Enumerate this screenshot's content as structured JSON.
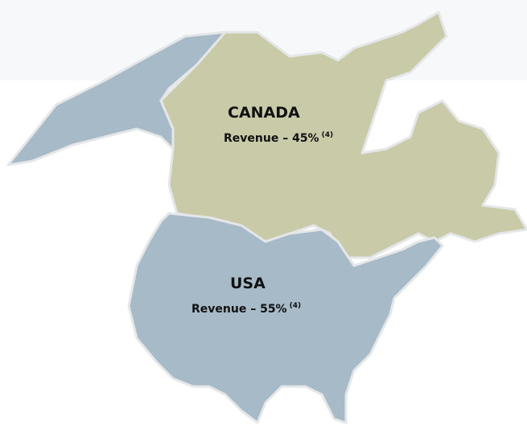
{
  "regions": [
    {
      "name": "CANADA",
      "revenue": "Revenue – 45%",
      "footnote": "(4)"
    },
    {
      "name": "USA",
      "revenue": "Revenue – 55%",
      "footnote": "(4)"
    }
  ]
}
